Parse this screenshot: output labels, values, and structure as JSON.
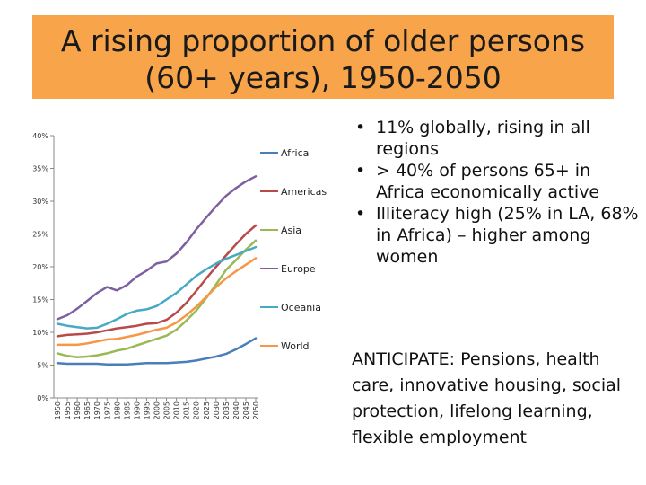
{
  "slide": {
    "title_line1": "A rising proportion of older persons",
    "title_line2": "(60+ years), 1950-2050",
    "bullets": [
      "11% globally, rising in all regions",
      "> 40% of persons 65+ in Africa economically active",
      "Illiteracy high (25% in LA, 68% in Africa) – higher among women"
    ],
    "anticipate": "ANTICIPATE:  Pensions, health care, innovative housing, social protection, lifelong learning, flexible employment"
  },
  "chart_data": {
    "type": "line",
    "title": "",
    "xlabel": "",
    "ylabel": "",
    "ylim": [
      0,
      40
    ],
    "y_ticks": [
      "0%",
      "5%",
      "10%",
      "15%",
      "20%",
      "25%",
      "30%",
      "35%",
      "40%"
    ],
    "grid": false,
    "legend_position": "right",
    "categories": [
      "1950",
      "1955",
      "1960",
      "1965",
      "1970",
      "1975",
      "1980",
      "1985",
      "1990",
      "1995",
      "2000",
      "2005",
      "2010",
      "2015",
      "2020",
      "2025",
      "2030",
      "2035",
      "2040",
      "2045",
      "2050"
    ],
    "series": [
      {
        "name": "Africa",
        "color": "#4a7ebb",
        "values": [
          5.3,
          5.2,
          5.2,
          5.2,
          5.2,
          5.1,
          5.1,
          5.1,
          5.2,
          5.3,
          5.3,
          5.3,
          5.4,
          5.5,
          5.7,
          6.0,
          6.3,
          6.7,
          7.4,
          8.2,
          9.1
        ]
      },
      {
        "name": "Americas",
        "color": "#b84a4a",
        "values": [
          9.4,
          9.6,
          9.7,
          9.8,
          10.0,
          10.3,
          10.6,
          10.8,
          11.0,
          11.3,
          11.4,
          11.9,
          13.0,
          14.5,
          16.3,
          18.2,
          20.0,
          21.7,
          23.4,
          25.0,
          26.3
        ]
      },
      {
        "name": "Asia",
        "color": "#98b954",
        "values": [
          6.8,
          6.4,
          6.2,
          6.3,
          6.5,
          6.8,
          7.2,
          7.5,
          8.0,
          8.5,
          9.0,
          9.5,
          10.4,
          11.8,
          13.3,
          15.2,
          17.3,
          19.5,
          21.0,
          22.6,
          24.0
        ]
      },
      {
        "name": "Europe",
        "color": "#7d60a0",
        "values": [
          12.0,
          12.6,
          13.6,
          14.8,
          16.0,
          16.9,
          16.4,
          17.2,
          18.5,
          19.4,
          20.5,
          20.8,
          22.0,
          23.7,
          25.7,
          27.5,
          29.2,
          30.8,
          32.0,
          33.0,
          33.8
        ]
      },
      {
        "name": "Oceania",
        "color": "#46aac5",
        "values": [
          11.3,
          11.0,
          10.8,
          10.6,
          10.7,
          11.3,
          12.0,
          12.8,
          13.3,
          13.5,
          14.0,
          15.0,
          16.0,
          17.3,
          18.6,
          19.6,
          20.5,
          21.2,
          21.8,
          22.4,
          23.0
        ]
      },
      {
        "name": "World",
        "color": "#f79646",
        "values": [
          8.1,
          8.1,
          8.1,
          8.3,
          8.6,
          8.9,
          9.0,
          9.3,
          9.6,
          10.0,
          10.4,
          10.7,
          11.5,
          12.6,
          13.9,
          15.4,
          16.9,
          18.2,
          19.3,
          20.3,
          21.3
        ]
      }
    ]
  }
}
